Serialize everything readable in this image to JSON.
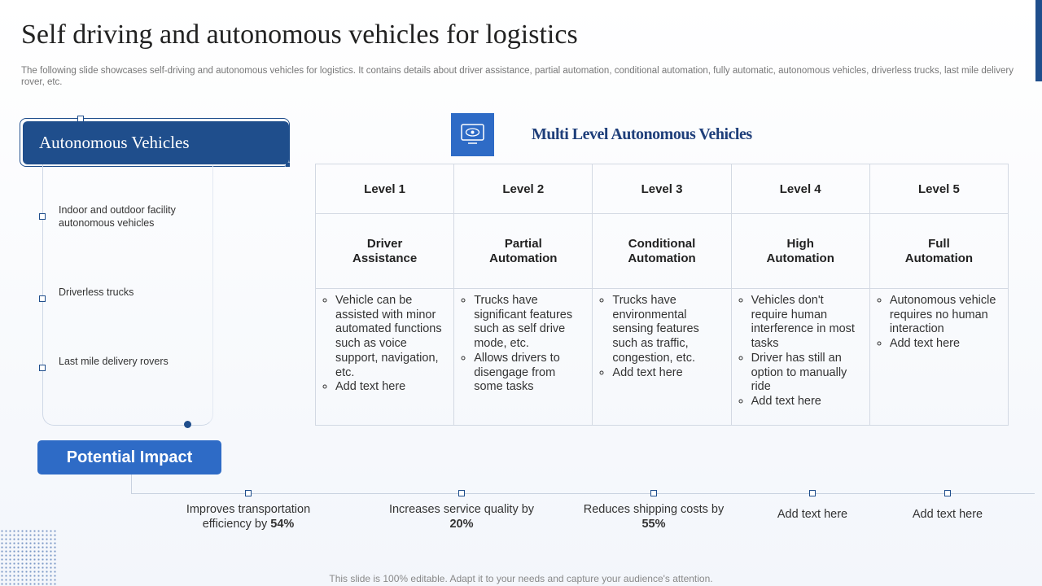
{
  "header": {
    "title": "Self driving and autonomous vehicles for logistics",
    "description": "The following slide showcases self-driving and autonomous vehicles for logistics. It contains details about driver assistance, partial automation, conditional automation, fully automatic, autonomous vehicles, driverless trucks, last mile delivery rover, etc."
  },
  "autonomous_panel": {
    "title": "Autonomous Vehicles",
    "items": [
      "Indoor and outdoor facility autonomous vehicles",
      "Driverless  trucks",
      "Last mile delivery  rovers"
    ]
  },
  "table": {
    "heading": "Multi Level Autonomous Vehicles",
    "columns": [
      {
        "level": "Level 1",
        "name": "Driver Assistance",
        "bullets": [
          "Vehicle can be assisted with minor automated functions such as voice support, navigation, etc.",
          "Add text here"
        ]
      },
      {
        "level": "Level 2",
        "name": "Partial Automation",
        "bullets": [
          "Trucks have significant features such as self drive mode, etc.",
          "Allows drivers to disengage from some tasks"
        ]
      },
      {
        "level": "Level 3",
        "name": "Conditional Automation",
        "bullets": [
          "Trucks have environmental sensing features such as traffic, congestion, etc.",
          "Add text here"
        ]
      },
      {
        "level": "Level 4",
        "name": "High Automation",
        "bullets": [
          "Vehicles don't require human interference in most tasks",
          "Driver has still an option to manually ride",
          "Add text here"
        ]
      },
      {
        "level": "Level 5",
        "name": "Full Automation",
        "bullets": [
          "Autonomous vehicle requires no human interaction",
          "Add text here"
        ]
      }
    ]
  },
  "impact": {
    "title": "Potential Impact",
    "items": [
      {
        "text": "Improves transportation efficiency by ",
        "bold": "54%"
      },
      {
        "text": "Increases service quality by ",
        "bold": "20%"
      },
      {
        "text": "Reduces shipping costs by ",
        "bold": "55%"
      },
      {
        "text": "Add text here"
      },
      {
        "text": "Add text here"
      }
    ]
  },
  "footer": "This slide is 100% editable. Adapt it to your needs and capture your audience's attention."
}
